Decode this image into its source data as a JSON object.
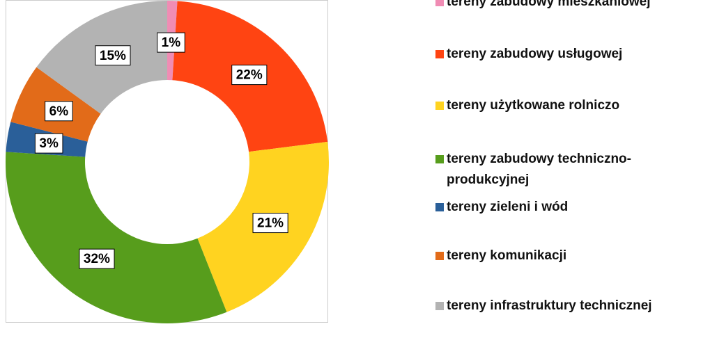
{
  "chart_data": {
    "type": "donut",
    "categories": [
      "tereny zabudowy mieszkaniowej",
      "tereny zabudowy usługowej",
      "tereny użytkowane rolniczo",
      "tereny zabudowy techniczno-produkcyjnej",
      "tereny zieleni i wód",
      "tereny komunikacji",
      "tereny infrastruktury technicznej"
    ],
    "values": [
      1,
      22,
      21,
      32,
      3,
      6,
      15
    ],
    "value_labels": [
      "1%",
      "22%",
      "21%",
      "32%",
      "3%",
      "6%",
      "15%"
    ],
    "colors": [
      "#f08cb4",
      "#ff4412",
      "#ffd320",
      "#579d1c",
      "#2a5f99",
      "#e26b19",
      "#b3b3b3"
    ],
    "legend": "right"
  }
}
